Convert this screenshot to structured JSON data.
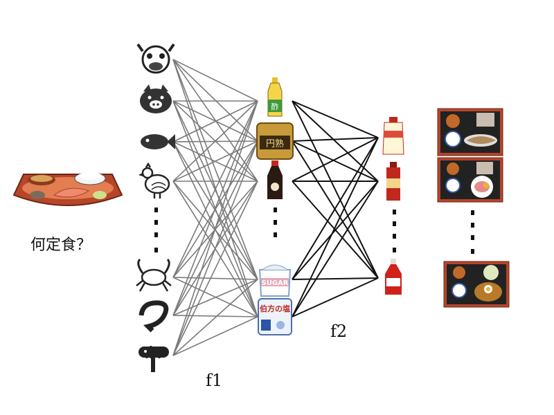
{
  "question": "何定食？",
  "labels": {
    "f1": "f1",
    "f2": "f2"
  },
  "ingredients": [
    "cow-icon",
    "pig-icon",
    "fish-icon",
    "chicken-icon",
    "crab-icon",
    "shrimp-icon",
    "sausage-icon"
  ],
  "seasonings_layer1": [
    {
      "icon": "vinegar-bottle-icon",
      "label": "酢"
    },
    {
      "icon": "miso-pack-icon",
      "label": "円熟"
    },
    {
      "icon": "soy-sauce-bottle-icon",
      "label": ""
    },
    {
      "icon": "sugar-bag-icon",
      "label": "SUGAR"
    },
    {
      "icon": "salt-bag-icon",
      "label": "伯方の塩"
    }
  ],
  "seasonings_layer2": [
    "mayonnaise-icon",
    "dressing-bottle-icon",
    "ketchup-icon"
  ],
  "outputs": [
    "fish-set-meal-icon",
    "ham-egg-set-meal-icon",
    "curry-set-meal-icon"
  ],
  "colors": {
    "f1_edges": "#7a7a7a",
    "f2_edges": "#111111",
    "tray": "#b6452a"
  }
}
